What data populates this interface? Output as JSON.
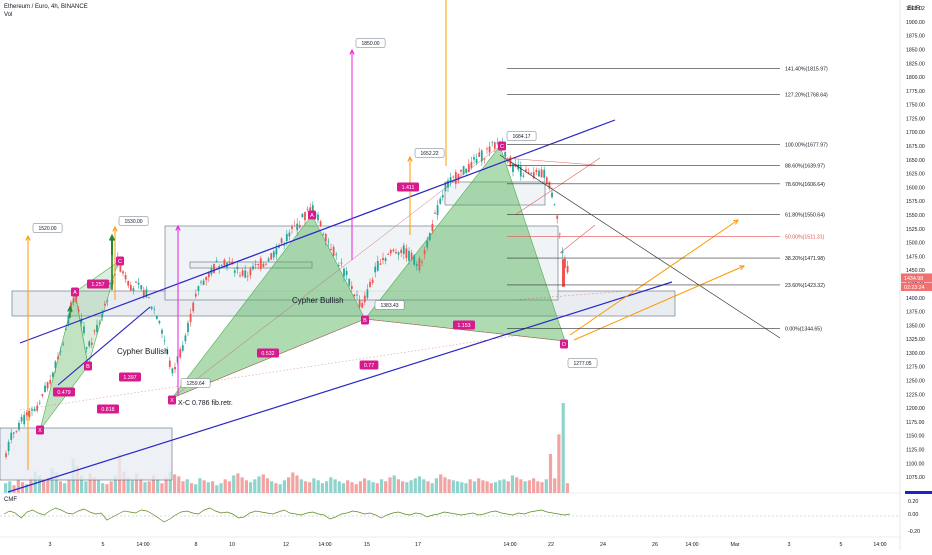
{
  "header": {
    "title": "Ethereum / Euro, 4h, BINANCE",
    "volume_label": "Vol",
    "currency": "EUR",
    "indicator_label": "CMF"
  },
  "colors": {
    "bull": "#26a69a",
    "bear": "#ef5350",
    "pattern_fill": "#4caf50",
    "pattern_label": "#d81b8c",
    "trend_line": "#2727c8",
    "arrow_orange": "#ff9800",
    "arrow_magenta": "#e91ee0",
    "arrow_green": "#1b8a2e",
    "cmf_line": "#5c8a1e",
    "price_tag": "#f07070"
  },
  "price_axis": {
    "min": 1062.5,
    "max": 1925,
    "ticks": [
      "1925.02",
      "1900.00",
      "1875.00",
      "1850.00",
      "1825.00",
      "1800.00",
      "1775.00",
      "1750.00",
      "1725.00",
      "1700.00",
      "1675.00",
      "1650.00",
      "1625.00",
      "1600.00",
      "1575.00",
      "1550.00",
      "1525.00",
      "1500.00",
      "1475.00",
      "1450.00",
      "1425.00",
      "1400.00",
      "1375.00",
      "1350.00",
      "1325.00",
      "1300.00",
      "1275.00",
      "1250.00",
      "1225.00",
      "1200.00",
      "1175.00",
      "1150.00",
      "1125.00",
      "1100.00",
      "1075.00"
    ],
    "last_price": "1434.98",
    "countdown": "02:23:24"
  },
  "cmf_axis": {
    "ticks": [
      "0.20",
      "0.00",
      "-0.20"
    ]
  },
  "time_axis": {
    "labels": [
      "3",
      "5",
      "14:00",
      "8",
      "10",
      "12",
      "14:00",
      "15",
      "17",
      "14:00",
      "22",
      "24",
      "26",
      "14:00",
      "Mar",
      "3",
      "5",
      "14:00"
    ]
  },
  "fib_levels": [
    {
      "label": "141.40%(1815.97)",
      "value": 1815.97
    },
    {
      "label": "127.20%(1768.64)",
      "value": 1768.64
    },
    {
      "label": "100.00%(1677.97)",
      "value": 1677.97
    },
    {
      "label": "88.60%(1639.97)",
      "value": 1639.97
    },
    {
      "label": "78.60%(1606.64)",
      "value": 1606.64
    },
    {
      "label": "61.80%(1550.64)",
      "value": 1550.64
    },
    {
      "label": "50.00%(1511.31)",
      "value": 1511.31
    },
    {
      "label": "38.20%(1471.98)",
      "value": 1471.98
    },
    {
      "label": "23.60%(1423.32)",
      "value": 1423.32
    },
    {
      "label": "0.00%(1344.65)",
      "value": 1344.65
    }
  ],
  "annotations": {
    "p1520": "1520.00",
    "p1530": "1530.00",
    "p1850": "1850.00",
    "p1652": "1652.22",
    "p1684": "1684.17",
    "p1383": "1383.43",
    "p1259": "1259.64",
    "p1277": "1277.05",
    "r1257": "1.257",
    "r0479": "0.479",
    "r1397": "1.397",
    "r0818": "0.818",
    "r0532": "0.532",
    "r077": "0.77",
    "r1153": "1.153",
    "r1411": "1.411",
    "cypher1": "Cypher Bullish",
    "cypher2": "Cypher Bullish",
    "xc_text": "X-C 0.786 fib.retr."
  },
  "chart_data": {
    "type": "candlestick",
    "title": "Ethereum / Euro, 4h, BINANCE",
    "ylabel": "EUR",
    "ylim": [
      1062.5,
      1925
    ],
    "x_range_labels": [
      "3",
      "5",
      "8",
      "10",
      "12",
      "15",
      "17",
      "22",
      "24",
      "26",
      "Mar",
      "3",
      "5"
    ],
    "last_price": 1434.98,
    "key_points": [
      {
        "name": "X",
        "value": 1190
      },
      {
        "name": "A",
        "value": 1413
      },
      {
        "name": "B",
        "value": 1305
      },
      {
        "name": "C",
        "value": 1465
      },
      {
        "name": "X",
        "value": 1262
      },
      {
        "name": "A",
        "value": 1564
      },
      {
        "name": "B",
        "value": 1383.43
      },
      {
        "name": "C",
        "value": 1684.17
      },
      {
        "name": "D",
        "value": 1344.65
      }
    ],
    "price_targets": [
      1520.0,
      1530.0,
      1850.0,
      1652.22,
      1277.05
    ],
    "volume": [
      10,
      12,
      8,
      14,
      11,
      9,
      15,
      22,
      18,
      13,
      16,
      25,
      21,
      12,
      10,
      14,
      35,
      28,
      18,
      12,
      20,
      16,
      14,
      10,
      9,
      12,
      18,
      40,
      22,
      16,
      13,
      20,
      15,
      11,
      12,
      18,
      14,
      10,
      16,
      22,
      19,
      17,
      12,
      14,
      10,
      9,
      15,
      13,
      11,
      12,
      8,
      10,
      14,
      12,
      18,
      20,
      16,
      13,
      11,
      14,
      17,
      19,
      15,
      12,
      10,
      9,
      13,
      16,
      21,
      18,
      14,
      12,
      11,
      15,
      13,
      10,
      12,
      16,
      14,
      12,
      10,
      13,
      11,
      9,
      12,
      15,
      13,
      11,
      10,
      14,
      12,
      16,
      18,
      14,
      12,
      11,
      13,
      15,
      17,
      14,
      12,
      10,
      15,
      19,
      16,
      14,
      13,
      12,
      11,
      10,
      14,
      12,
      15,
      13,
      12,
      10,
      11,
      13,
      14,
      12,
      18,
      16,
      14,
      12,
      13,
      15,
      12,
      11,
      14,
      40,
      15,
      60,
      92,
      10
    ],
    "cmf": [
      0.02,
      0.05,
      0.03,
      -0.02,
      0.04,
      0.06,
      0.03,
      0.01,
      0.05,
      0.08,
      0.06,
      0.03,
      0.02,
      0.05,
      0.07,
      0.04,
      0.02,
      0.03,
      -0.04,
      -0.01,
      0.02,
      0.05,
      0.04,
      0.03,
      0.06,
      0.05,
      0.02,
      -0.02,
      -0.06,
      -0.03,
      0.01,
      0.04,
      0.05,
      0.03,
      0.02,
      0.06,
      0.08,
      0.05,
      0.03,
      0.04,
      0.02,
      -0.02,
      -0.01,
      0.03,
      0.05,
      0.04,
      0.03,
      0.02,
      0.04,
      0.06,
      0.03,
      0.02,
      0.01,
      0.03,
      0.04,
      0.02,
      0.01,
      -0.03,
      -0.01,
      0.02,
      0.03,
      0.05,
      0.04,
      0.02,
      0.03,
      0.01,
      -0.02,
      0.01,
      0.03,
      0.04,
      0.02,
      0.01,
      0.03,
      0.02,
      -0.01,
      0.01,
      0.02,
      0.04,
      0.03,
      0.02,
      0.01,
      0.02,
      0.03,
      0.01,
      0.02,
      0.04,
      0.05,
      0.03,
      0.02,
      0.01,
      0.03,
      0.02,
      0.04,
      0.05,
      0.06,
      0.04,
      0.03,
      0.02,
      0.01,
      0.02
    ]
  }
}
